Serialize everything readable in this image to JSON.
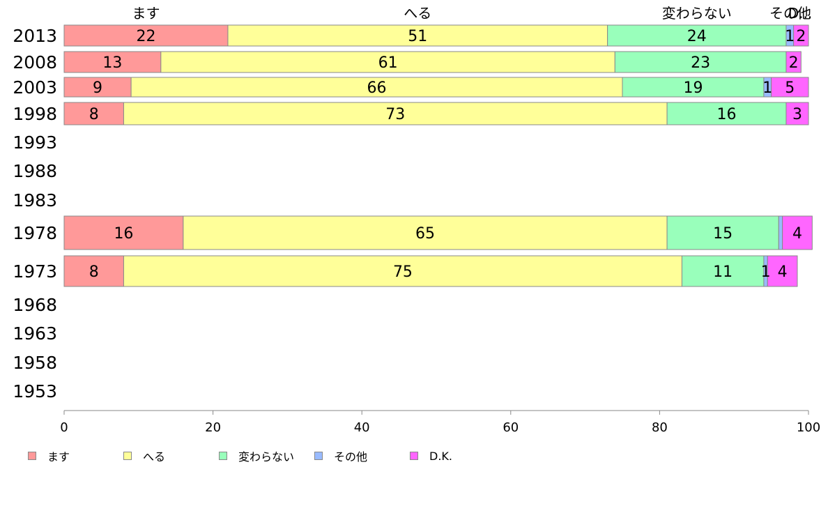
{
  "chart_data": {
    "type": "bar",
    "orientation": "horizontal",
    "stacked": true,
    "categories": [
      "2013",
      "2008",
      "2003",
      "1998",
      "1993",
      "1988",
      "1983",
      "1978",
      "1973",
      "1968",
      "1963",
      "1958",
      "1953"
    ],
    "series": [
      {
        "name": "ます",
        "color": "#ff9999",
        "values": [
          22,
          13,
          9,
          8,
          null,
          null,
          null,
          16,
          8,
          null,
          null,
          null,
          null
        ]
      },
      {
        "name": "へる",
        "color": "#ffff99",
        "values": [
          51,
          61,
          66,
          73,
          null,
          null,
          null,
          65,
          75,
          null,
          null,
          null,
          null
        ]
      },
      {
        "name": "変わらない",
        "color": "#99ffbb",
        "values": [
          24,
          23,
          19,
          16,
          null,
          null,
          null,
          15,
          11,
          null,
          null,
          null,
          null
        ]
      },
      {
        "name": "その他",
        "color": "#99bbff",
        "values": [
          1,
          0,
          1,
          0,
          null,
          null,
          null,
          0.5,
          0.5,
          null,
          null,
          null,
          null
        ]
      },
      {
        "name": "D.K.",
        "color": "#ff66ff",
        "values": [
          2,
          2,
          5,
          3,
          null,
          null,
          null,
          4,
          4,
          null,
          null,
          null,
          null
        ]
      }
    ],
    "data_labels": [
      [
        "22",
        "51",
        "24",
        "1",
        "2"
      ],
      [
        "13",
        "61",
        "23",
        "",
        "2"
      ],
      [
        "9",
        "66",
        "19",
        "1",
        "5"
      ],
      [
        "8",
        "73",
        "16",
        "",
        "3"
      ],
      [
        "",
        "",
        "",
        "",
        ""
      ],
      [
        "",
        "",
        "",
        "",
        ""
      ],
      [
        "",
        "",
        "",
        "",
        ""
      ],
      [
        "16",
        "65",
        "15",
        "",
        "4"
      ],
      [
        "8",
        "75",
        "11",
        "1",
        "4"
      ],
      [
        "",
        "",
        "",
        "",
        ""
      ],
      [
        "",
        "",
        "",
        "",
        ""
      ],
      [
        "",
        "",
        "",
        "",
        ""
      ],
      [
        "",
        "",
        "",
        "",
        ""
      ]
    ],
    "top_labels": [
      "ます",
      "へる",
      "変わらない",
      "その他",
      "D..."
    ],
    "xlim": [
      0,
      100
    ],
    "xticks": [
      "0",
      "20",
      "40",
      "60",
      "80",
      "100"
    ],
    "grid": false,
    "legend_position": "bottom-left"
  }
}
